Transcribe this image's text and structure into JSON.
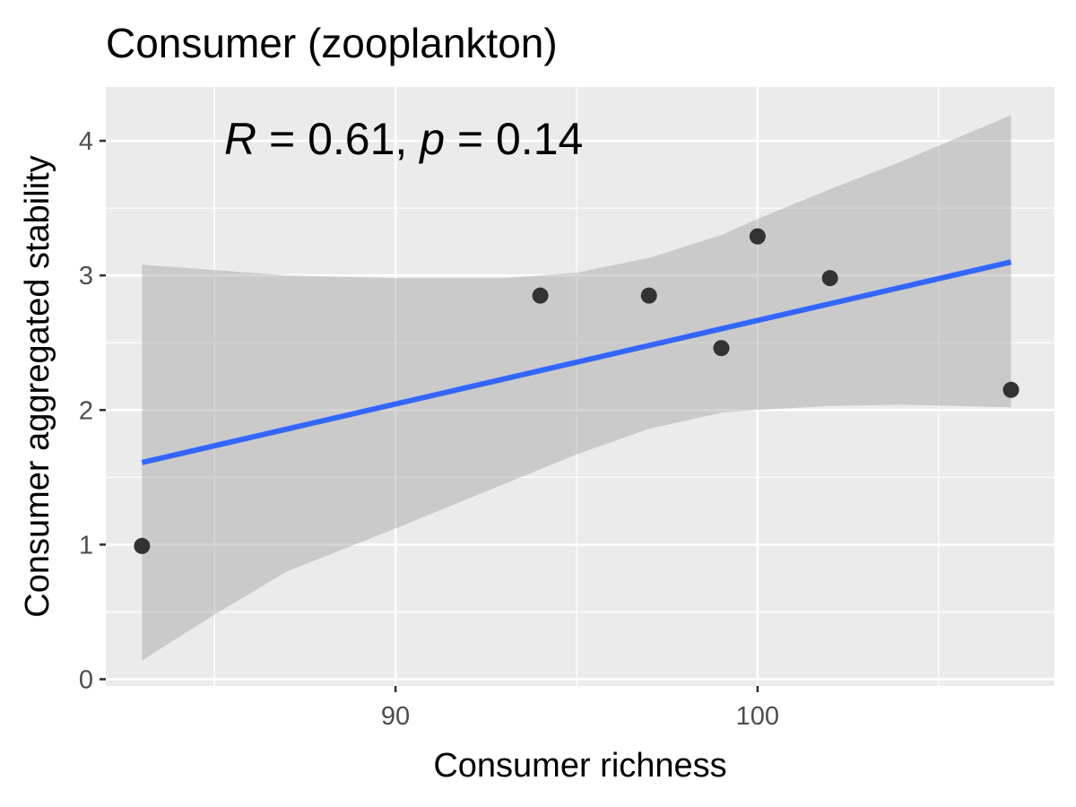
{
  "chart_data": {
    "type": "scatter",
    "title": "Consumer (zooplankton)",
    "xlabel": "Consumer richness",
    "ylabel": "Consumer aggregated stability",
    "xlim": [
      82.0,
      108.2
    ],
    "ylim": [
      -0.05,
      4.4
    ],
    "x_ticks": [
      90,
      100
    ],
    "x_tick_labels": [
      "90",
      "100"
    ],
    "x_minor_ticks": [
      85,
      95,
      105
    ],
    "y_ticks": [
      0,
      1,
      2,
      3,
      4
    ],
    "y_tick_labels": [
      "0",
      "1",
      "2",
      "3",
      "4"
    ],
    "y_minor_ticks": [
      0.5,
      1.5,
      2.5,
      3.5
    ],
    "grid": true,
    "points": [
      {
        "x": 83,
        "y": 0.99
      },
      {
        "x": 94,
        "y": 2.85
      },
      {
        "x": 97,
        "y": 2.85
      },
      {
        "x": 99,
        "y": 2.46
      },
      {
        "x": 100,
        "y": 3.29
      },
      {
        "x": 102,
        "y": 2.98
      },
      {
        "x": 107,
        "y": 2.15
      }
    ],
    "fit_line": {
      "x": [
        83,
        107
      ],
      "y": [
        1.61,
        3.1
      ]
    },
    "confidence_band": {
      "x": [
        83,
        85,
        87,
        90,
        93,
        95,
        97,
        99,
        100,
        102,
        104,
        107
      ],
      "lower": [
        0.14,
        0.48,
        0.8,
        1.12,
        1.45,
        1.67,
        1.86,
        1.98,
        2.0,
        2.03,
        2.04,
        2.02
      ],
      "upper": [
        3.08,
        3.04,
        3.0,
        2.98,
        2.98,
        3.02,
        3.13,
        3.3,
        3.42,
        3.64,
        3.85,
        4.19
      ]
    },
    "annotation": {
      "r_label": "R",
      "r_value": " = 0.61, ",
      "p_label": "p",
      "p_value": " = 0.14"
    },
    "colors": {
      "panel": "#ebebeb",
      "grid": "#ffffff",
      "point": "#333333",
      "line": "#3366ff",
      "band": "#999999"
    }
  }
}
